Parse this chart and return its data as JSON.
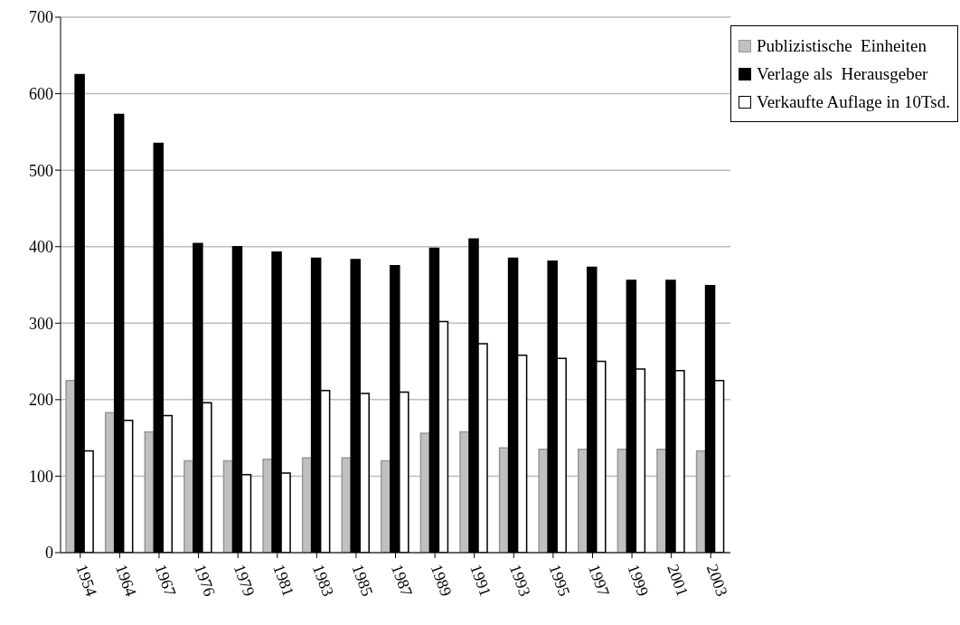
{
  "chart_data": {
    "type": "bar",
    "categories": [
      "1954",
      "1964",
      "1967",
      "1976",
      "1979",
      "1981",
      "1983",
      "1985",
      "1987",
      "1989",
      "1991",
      "1993",
      "1995",
      "1997",
      "1999",
      "2001",
      "2003"
    ],
    "series": [
      {
        "name": "Publizistische  Einheiten",
        "color": "#c0c0c0",
        "values": [
          225,
          183,
          158,
          120,
          120,
          122,
          124,
          124,
          120,
          156,
          158,
          137,
          135,
          135,
          135,
          135,
          133
        ]
      },
      {
        "name": "Verlage als  Herausgeber",
        "color": "#000000",
        "values": [
          625,
          573,
          535,
          404,
          400,
          393,
          385,
          383,
          375,
          398,
          410,
          385,
          381,
          373,
          356,
          356,
          349
        ]
      },
      {
        "name": "Verkaufte Auflage in 10Tsd.",
        "color": "#ffffff",
        "values": [
          133,
          173,
          179,
          196,
          102,
          104,
          212,
          208,
          210,
          302,
          273,
          258,
          254,
          250,
          240,
          238,
          225
        ]
      }
    ],
    "ylim": [
      0,
      700
    ],
    "yticks": [
      0,
      100,
      200,
      300,
      400,
      500,
      600,
      700
    ],
    "grid": "y",
    "legend": "top right"
  }
}
